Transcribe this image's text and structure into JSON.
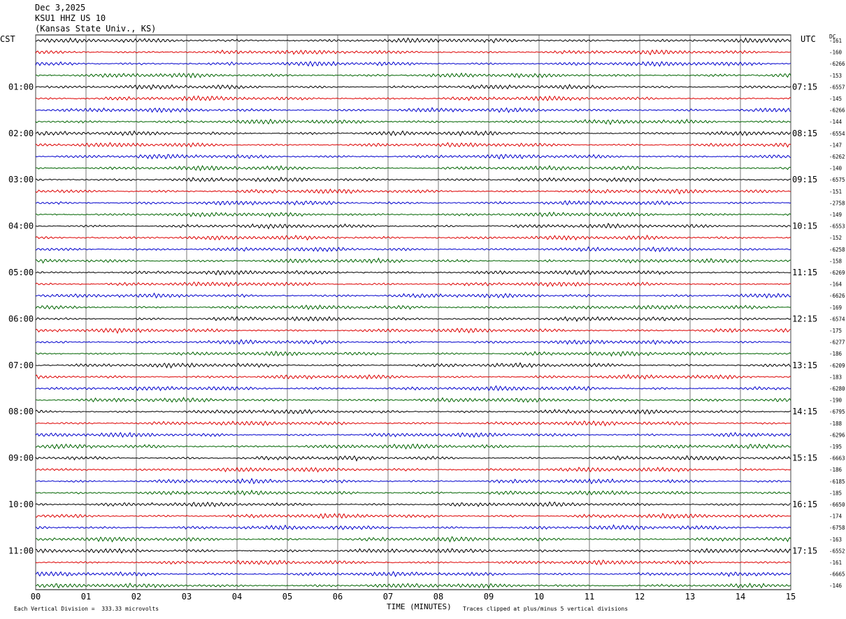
{
  "header": {
    "date": "Dec 3,2025",
    "station": "KSU1 HHZ US 10",
    "location": "(Kansas State Univ., KS)"
  },
  "left_axis_label": "CST",
  "right_axis_label": "UTC",
  "dc_label": "DC",
  "footer": {
    "division_note": "Each Vertical Division =  333.33 microvolts",
    "xlabel": "TIME (MINUTES)",
    "clip_note": "Traces clipped at plus/minus 5 vertical divisions"
  },
  "chart_data": {
    "type": "line",
    "title": "",
    "xlabel": "TIME (MINUTES)",
    "xlim": [
      0,
      15
    ],
    "x_ticks": [
      "00",
      "01",
      "02",
      "03",
      "04",
      "05",
      "06",
      "07",
      "08",
      "09",
      "10",
      "11",
      "12",
      "13",
      "14",
      "15"
    ],
    "left_hour_labels": [
      "01:00",
      "02:00",
      "03:00",
      "04:00",
      "05:00",
      "06:00",
      "07:00",
      "08:00",
      "09:00",
      "10:00",
      "11:00"
    ],
    "right_hour_labels": [
      "07:15",
      "08:15",
      "09:15",
      "10:15",
      "11:15",
      "12:15",
      "13:15",
      "14:15",
      "15:15",
      "16:15",
      "17:15"
    ],
    "trace_colors": [
      "#000000",
      "#dd0000",
      "#0000cc",
      "#006400"
    ],
    "trace_count": 48,
    "dc_offsets": [
      "-161",
      "-160",
      "-6266",
      "-153",
      "-6557",
      "-145",
      "-6266",
      "-144",
      "-6554",
      "-147",
      "-6262",
      "-140",
      "-6575",
      "-151",
      "-2758",
      "-149",
      "-6553",
      "-152",
      "-6258",
      "-158",
      "-6269",
      "-164",
      "-6626",
      "-169",
      "-6574",
      "-175",
      "-6277",
      "-186",
      "-6209",
      "-183",
      "-6280",
      "-190",
      "-6795",
      "-188",
      "-6296",
      "-195",
      "-6663",
      "-186",
      "-6185",
      "-185",
      "-6650",
      "-174",
      "-6758",
      "-163",
      "-6552",
      "-161",
      "-6665",
      "-146"
    ],
    "grid": true
  }
}
